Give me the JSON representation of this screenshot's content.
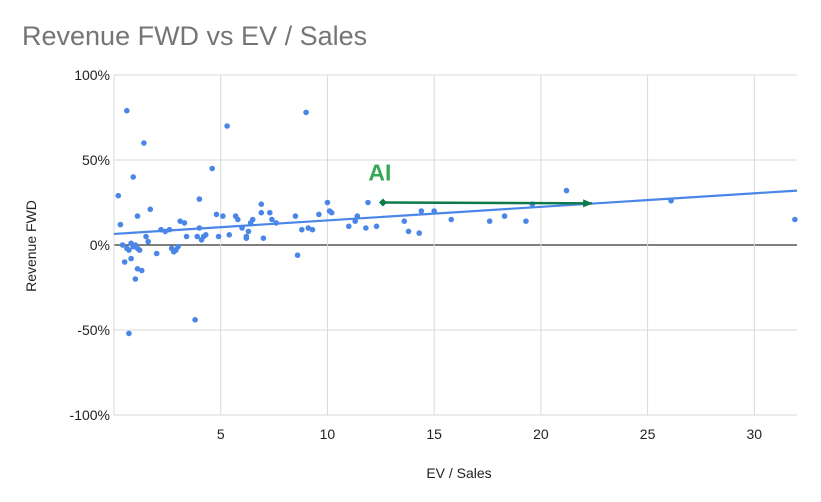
{
  "chart_data": {
    "type": "scatter",
    "title": "Revenue FWD vs EV / Sales",
    "xlabel": "EV / Sales",
    "ylabel": "Revenue FWD",
    "xlim": [
      0,
      32
    ],
    "ylim": [
      -100,
      100
    ],
    "x_ticks": [
      5,
      10,
      15,
      20,
      25,
      30
    ],
    "y_ticks": [
      -100,
      -50,
      0,
      50,
      100
    ],
    "y_tick_labels": [
      "-100%",
      "-50%",
      "0%",
      "50%",
      "100%"
    ],
    "grid": true,
    "legend": "none",
    "colors": {
      "points": "#4a86e8",
      "trendline": "#4a86e8",
      "annotation": "#0d7a4b",
      "annotation_text": "#34a853",
      "zero_line": "#333333",
      "grid": "#d9d9d9"
    },
    "trendline": {
      "x": [
        0,
        32
      ],
      "y": [
        6.5,
        32
      ]
    },
    "annotation": {
      "text": "AI",
      "arrow_from": [
        12.6,
        25
      ],
      "arrow_to": [
        22.4,
        24.5
      ]
    },
    "points": [
      [
        0.2,
        29
      ],
      [
        0.3,
        12
      ],
      [
        0.6,
        79
      ],
      [
        0.9,
        40
      ],
      [
        0.5,
        -10
      ],
      [
        0.4,
        0
      ],
      [
        0.6,
        -2
      ],
      [
        0.7,
        -3
      ],
      [
        0.8,
        1
      ],
      [
        0.9,
        -1
      ],
      [
        1.0,
        0
      ],
      [
        1.1,
        -2
      ],
      [
        0.8,
        -8
      ],
      [
        1.0,
        -20
      ],
      [
        1.1,
        -14
      ],
      [
        1.3,
        -15
      ],
      [
        1.2,
        -3
      ],
      [
        1.1,
        17
      ],
      [
        1.4,
        60
      ],
      [
        1.5,
        5
      ],
      [
        1.6,
        2
      ],
      [
        1.7,
        21
      ],
      [
        0.7,
        -52
      ],
      [
        2.0,
        -5
      ],
      [
        2.2,
        9
      ],
      [
        2.4,
        8
      ],
      [
        2.6,
        9
      ],
      [
        2.7,
        -2
      ],
      [
        2.8,
        -4
      ],
      [
        2.9,
        -3
      ],
      [
        3.0,
        -1
      ],
      [
        3.1,
        14
      ],
      [
        3.3,
        13
      ],
      [
        3.4,
        5
      ],
      [
        3.8,
        -44
      ],
      [
        3.9,
        5
      ],
      [
        4.0,
        10
      ],
      [
        4.1,
        3
      ],
      [
        4.2,
        5
      ],
      [
        4.0,
        27
      ],
      [
        4.3,
        6
      ],
      [
        4.6,
        45
      ],
      [
        4.8,
        18
      ],
      [
        4.9,
        5
      ],
      [
        5.1,
        17
      ],
      [
        5.3,
        70
      ],
      [
        5.4,
        6
      ],
      [
        5.7,
        17
      ],
      [
        5.8,
        15
      ],
      [
        6.0,
        10
      ],
      [
        6.2,
        4
      ],
      [
        6.3,
        8
      ],
      [
        6.4,
        13
      ],
      [
        6.5,
        15
      ],
      [
        6.2,
        5
      ],
      [
        6.9,
        19
      ],
      [
        6.9,
        24
      ],
      [
        7.0,
        4
      ],
      [
        7.3,
        19
      ],
      [
        7.4,
        15
      ],
      [
        7.6,
        13
      ],
      [
        8.5,
        17
      ],
      [
        8.6,
        -6
      ],
      [
        8.8,
        9
      ],
      [
        9.0,
        78
      ],
      [
        9.1,
        10
      ],
      [
        9.3,
        9
      ],
      [
        9.6,
        18
      ],
      [
        10.0,
        25
      ],
      [
        10.1,
        20
      ],
      [
        10.2,
        19
      ],
      [
        11.0,
        11
      ],
      [
        11.3,
        14
      ],
      [
        11.4,
        17
      ],
      [
        11.8,
        10
      ],
      [
        11.9,
        25
      ],
      [
        12.3,
        11
      ],
      [
        13.6,
        14
      ],
      [
        13.8,
        8
      ],
      [
        14.3,
        7
      ],
      [
        14.4,
        20
      ],
      [
        15.0,
        20
      ],
      [
        15.8,
        15
      ],
      [
        17.6,
        14
      ],
      [
        18.3,
        17
      ],
      [
        19.3,
        14
      ],
      [
        19.6,
        24
      ],
      [
        21.2,
        32
      ],
      [
        26.1,
        26
      ],
      [
        31.9,
        15
      ]
    ]
  }
}
